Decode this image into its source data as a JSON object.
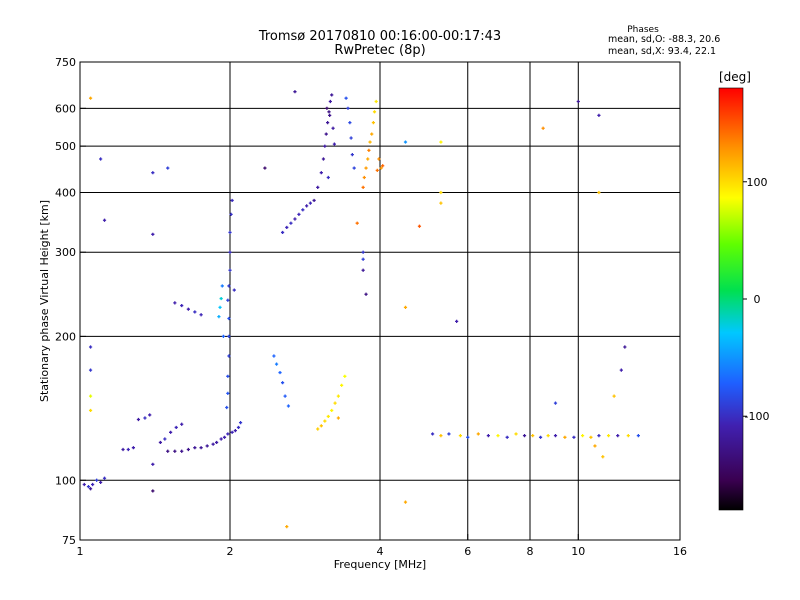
{
  "chart_data": {
    "type": "scatter",
    "title": "Tromsø 20170810 00:16:00-00:17:43",
    "subtitle": "RwPretec (8p)",
    "xlabel": "Frequency [MHz]",
    "ylabel": "Stationary phase Virtual Height [km]",
    "x_scale": "log",
    "y_scale": "log",
    "xlim": [
      1,
      16
    ],
    "ylim": [
      75,
      750
    ],
    "x_ticks": [
      1,
      2,
      4,
      6,
      8,
      10,
      16
    ],
    "y_ticks": [
      75,
      100,
      200,
      300,
      400,
      500,
      600,
      750
    ],
    "x_grid": [
      2,
      4,
      6,
      8,
      10
    ],
    "y_grid": [
      100,
      200,
      300,
      400,
      500,
      600
    ],
    "grid": true,
    "stats": {
      "header": "Phases",
      "line1": "mean, sd,O: -88.3, 20.6",
      "line2": "mean, sd,X:  93.4, 22.1"
    },
    "colorbar": {
      "label": "[deg]",
      "range": [
        -180,
        180
      ],
      "ticks": [
        100,
        0,
        -100
      ]
    },
    "points": [
      [
        1.02,
        98,
        -110
      ],
      [
        1.04,
        97,
        -95
      ],
      [
        1.06,
        98,
        -105
      ],
      [
        1.08,
        100,
        -90
      ],
      [
        1.1,
        99,
        -110
      ],
      [
        1.12,
        101,
        -100
      ],
      [
        1.05,
        96,
        -120
      ],
      [
        1.22,
        116,
        -115
      ],
      [
        1.25,
        116,
        -105
      ],
      [
        1.28,
        117,
        -110
      ],
      [
        1.31,
        134,
        -115
      ],
      [
        1.35,
        135,
        -100
      ],
      [
        1.38,
        137,
        -110
      ],
      [
        1.45,
        120,
        -115
      ],
      [
        1.48,
        122,
        -100
      ],
      [
        1.52,
        126,
        -110
      ],
      [
        1.56,
        129,
        -105
      ],
      [
        1.6,
        131,
        -110
      ],
      [
        1.5,
        115,
        -130
      ],
      [
        1.55,
        115,
        -130
      ],
      [
        1.6,
        115,
        -125
      ],
      [
        1.65,
        116,
        -125
      ],
      [
        1.7,
        117,
        -120
      ],
      [
        1.75,
        117,
        -120
      ],
      [
        1.8,
        118,
        -120
      ],
      [
        1.85,
        119,
        -115
      ],
      [
        1.88,
        120,
        -115
      ],
      [
        1.92,
        122,
        -110
      ],
      [
        1.95,
        123,
        -110
      ],
      [
        1.98,
        125,
        -105
      ],
      [
        2.02,
        126,
        -105
      ],
      [
        2.05,
        127,
        -110
      ],
      [
        2.08,
        129,
        -100
      ],
      [
        2.1,
        132,
        -95
      ],
      [
        1.97,
        142,
        -80
      ],
      [
        1.98,
        152,
        -78
      ],
      [
        1.98,
        165,
        -82
      ],
      [
        1.99,
        182,
        -90
      ],
      [
        1.99,
        200,
        -85
      ],
      [
        1.99,
        218,
        -80
      ],
      [
        1.98,
        238,
        -88
      ],
      [
        1.99,
        255,
        -92
      ],
      [
        2.0,
        275,
        -95
      ],
      [
        2.0,
        300,
        -100
      ],
      [
        2.0,
        330,
        -95
      ],
      [
        2.01,
        360,
        -98
      ],
      [
        2.02,
        385,
        -102
      ],
      [
        2.04,
        250,
        -100
      ],
      [
        1.9,
        220,
        -40
      ],
      [
        1.91,
        230,
        -30
      ],
      [
        1.92,
        240,
        -20
      ],
      [
        1.93,
        255,
        -60
      ],
      [
        1.94,
        200,
        -70
      ],
      [
        1.55,
        235,
        -110
      ],
      [
        1.6,
        232,
        -105
      ],
      [
        1.65,
        228,
        -110
      ],
      [
        1.7,
        225,
        -100
      ],
      [
        1.75,
        222,
        -105
      ],
      [
        2.45,
        182,
        -70
      ],
      [
        2.48,
        175,
        -60
      ],
      [
        2.52,
        168,
        -70
      ],
      [
        2.55,
        160,
        -80
      ],
      [
        2.58,
        150,
        -75
      ],
      [
        2.62,
        143,
        -70
      ],
      [
        2.55,
        330,
        -100
      ],
      [
        2.6,
        338,
        -105
      ],
      [
        2.65,
        345,
        -100
      ],
      [
        2.7,
        352,
        -110
      ],
      [
        2.75,
        360,
        -105
      ],
      [
        2.8,
        368,
        -100
      ],
      [
        2.85,
        375,
        -110
      ],
      [
        2.9,
        380,
        -105
      ],
      [
        2.95,
        385,
        -120
      ],
      [
        3.0,
        410,
        -115
      ],
      [
        3.05,
        440,
        -110
      ],
      [
        3.08,
        470,
        -120
      ],
      [
        3.1,
        500,
        -115
      ],
      [
        3.12,
        530,
        -125
      ],
      [
        3.14,
        560,
        -120
      ],
      [
        3.16,
        590,
        -130
      ],
      [
        3.18,
        620,
        -115
      ],
      [
        3.2,
        640,
        -120
      ],
      [
        3.13,
        600,
        -140
      ],
      [
        3.17,
        580,
        -125
      ],
      [
        3.22,
        545,
        -115
      ],
      [
        3.24,
        505,
        -110
      ],
      [
        3.15,
        430,
        -100
      ],
      [
        3.42,
        630,
        -80
      ],
      [
        3.45,
        600,
        -90
      ],
      [
        3.48,
        560,
        -85
      ],
      [
        3.5,
        520,
        -90
      ],
      [
        3.52,
        480,
        -95
      ],
      [
        3.55,
        450,
        -88
      ],
      [
        3.7,
        410,
        140
      ],
      [
        3.72,
        430,
        130
      ],
      [
        3.75,
        450,
        125
      ],
      [
        3.78,
        470,
        120
      ],
      [
        3.8,
        490,
        135
      ],
      [
        3.82,
        510,
        115
      ],
      [
        3.85,
        530,
        120
      ],
      [
        3.88,
        560,
        110
      ],
      [
        3.9,
        590,
        100
      ],
      [
        3.93,
        620,
        95
      ],
      [
        3.95,
        445,
        140
      ],
      [
        3.98,
        470,
        130
      ],
      [
        4.02,
        450,
        125
      ],
      [
        4.05,
        455,
        145
      ],
      [
        3.0,
        128,
        105
      ],
      [
        3.05,
        130,
        110
      ],
      [
        3.1,
        133,
        100
      ],
      [
        3.15,
        136,
        95
      ],
      [
        3.2,
        140,
        90
      ],
      [
        3.25,
        145,
        100
      ],
      [
        3.3,
        150,
        95
      ],
      [
        3.35,
        158,
        90
      ],
      [
        3.4,
        165,
        85
      ],
      [
        3.3,
        135,
        120
      ],
      [
        5.1,
        125,
        -100
      ],
      [
        5.3,
        124,
        110
      ],
      [
        5.5,
        125,
        -90
      ],
      [
        5.8,
        124,
        100
      ],
      [
        6.0,
        123,
        -80
      ],
      [
        6.3,
        125,
        120
      ],
      [
        6.6,
        124,
        -110
      ],
      [
        6.9,
        124,
        90
      ],
      [
        7.2,
        123,
        -100
      ],
      [
        7.5,
        125,
        100
      ],
      [
        7.8,
        124,
        -120
      ],
      [
        8.1,
        124,
        110
      ],
      [
        8.4,
        123,
        -95
      ],
      [
        8.7,
        124,
        100
      ],
      [
        9.0,
        124,
        -110
      ],
      [
        9.4,
        123,
        120
      ],
      [
        9.8,
        123,
        -100
      ],
      [
        10.2,
        124,
        90
      ],
      [
        10.6,
        123,
        110
      ],
      [
        11.0,
        124,
        -100
      ],
      [
        11.5,
        124,
        95
      ],
      [
        12.0,
        124,
        -110
      ],
      [
        12.6,
        124,
        100
      ],
      [
        13.2,
        124,
        -80
      ],
      [
        12.4,
        190,
        -120
      ],
      [
        12.2,
        170,
        -110
      ],
      [
        11.8,
        150,
        110
      ],
      [
        11.0,
        400,
        110
      ],
      [
        10.0,
        620,
        -120
      ],
      [
        1.05,
        630,
        120
      ],
      [
        1.1,
        470,
        -100
      ],
      [
        1.12,
        350,
        -110
      ],
      [
        1.4,
        440,
        -100
      ],
      [
        1.5,
        450,
        -90
      ],
      [
        1.4,
        327,
        -110
      ],
      [
        2.7,
        650,
        -120
      ],
      [
        2.35,
        450,
        -140
      ],
      [
        4.5,
        510,
        -50
      ],
      [
        5.3,
        510,
        90
      ],
      [
        5.3,
        400,
        100
      ],
      [
        5.3,
        380,
        110
      ],
      [
        4.8,
        340,
        150
      ],
      [
        5.7,
        215,
        -110
      ],
      [
        3.75,
        245,
        -130
      ],
      [
        3.7,
        275,
        -120
      ],
      [
        3.7,
        290,
        -90
      ],
      [
        3.7,
        300,
        -95
      ],
      [
        4.5,
        230,
        120
      ],
      [
        3.6,
        345,
        140
      ],
      [
        1.05,
        190,
        -100
      ],
      [
        1.05,
        170,
        -95
      ],
      [
        1.05,
        150,
        80
      ],
      [
        1.05,
        140,
        100
      ],
      [
        1.4,
        95,
        -140
      ],
      [
        1.4,
        108,
        -110
      ],
      [
        4.5,
        90,
        120
      ],
      [
        2.6,
        80,
        120
      ],
      [
        8.5,
        545,
        130
      ],
      [
        11.0,
        580,
        -110
      ],
      [
        9.0,
        145,
        -90
      ],
      [
        10.8,
        118,
        120
      ],
      [
        11.2,
        112,
        110
      ]
    ]
  }
}
